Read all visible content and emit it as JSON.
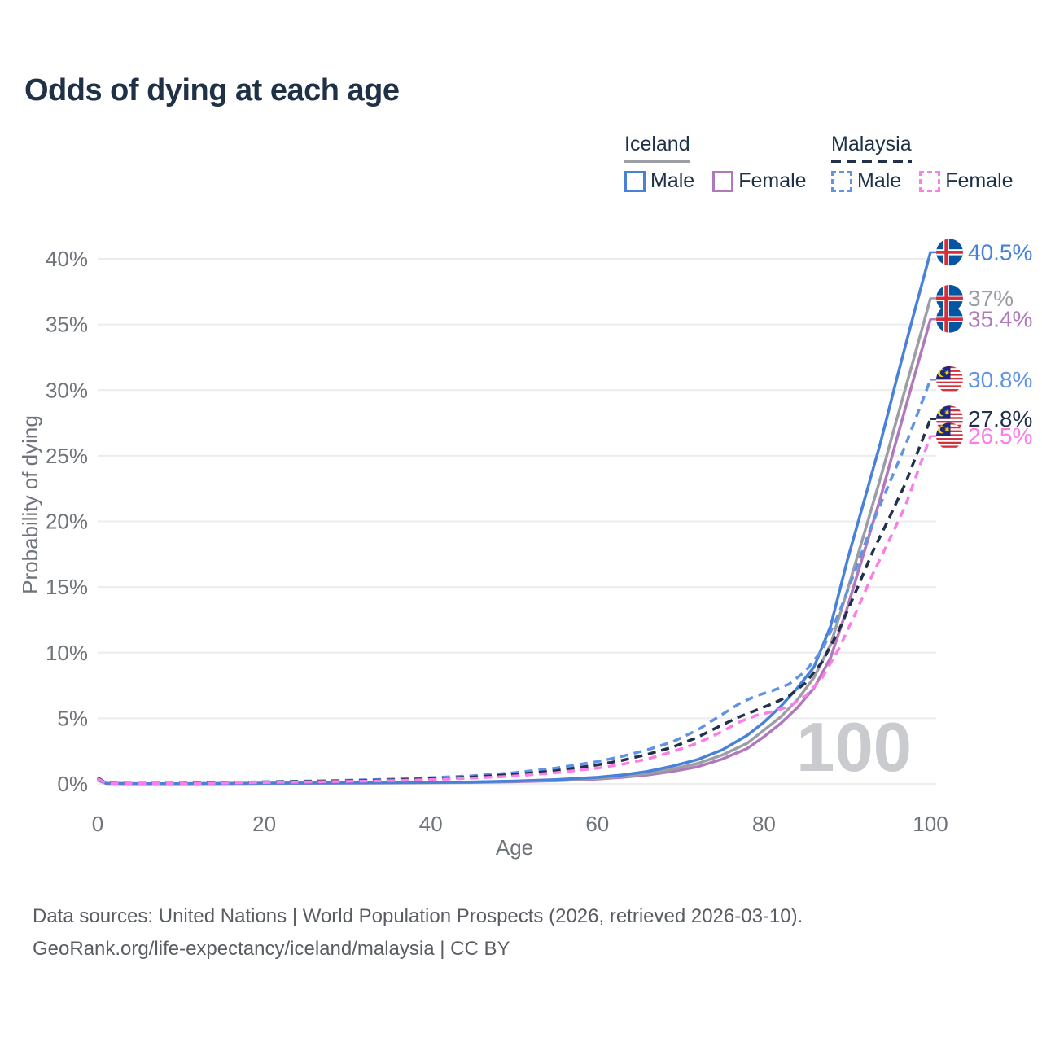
{
  "title": "Odds of dying at each age",
  "watermark_age": "100",
  "legend": {
    "groups": [
      {
        "name": "Iceland",
        "line_style": "solid",
        "line_color": "#9b9ea4",
        "items": [
          {
            "label": "Male",
            "color": "#4781d9",
            "dashed": false
          },
          {
            "label": "Female",
            "color": "#b278bd",
            "dashed": false
          }
        ]
      },
      {
        "name": "Malaysia",
        "line_style": "dashed",
        "line_color": "#22304a",
        "items": [
          {
            "label": "Male",
            "color": "#6093e5",
            "dashed": true
          },
          {
            "label": "Female",
            "color": "#fb7ee6",
            "dashed": true
          }
        ]
      }
    ]
  },
  "footer": {
    "line1": "Data sources: United Nations | World Population Prospects (2026, retrieved 2026-03-10).",
    "line2": "GeoRank.org/life-expectancy/iceland/malaysia | CC BY"
  },
  "chart_data": {
    "type": "line",
    "title": "Odds of dying at each age",
    "xlabel": "Age",
    "ylabel": "Probability of dying",
    "xlim": [
      0,
      100
    ],
    "ylim_percent": [
      0,
      40
    ],
    "xticks": [
      0,
      20,
      40,
      60,
      80,
      100
    ],
    "yticks_percent": [
      0,
      5,
      10,
      15,
      20,
      25,
      30,
      35,
      40
    ],
    "grid": true,
    "legend_position": "top-right",
    "current_age_frame": "100",
    "series": [
      {
        "name": "Iceland Female",
        "country": "Iceland",
        "sex": "female",
        "color": "#b278bd",
        "dash": "solid",
        "end_label": "35.4%",
        "end_value_percent": 35.4,
        "flag": "iceland",
        "flag_icon": "iceland-flag-icon",
        "points": [
          [
            0,
            0.28
          ],
          [
            1,
            0.04
          ],
          [
            5,
            0.015
          ],
          [
            10,
            0.015
          ],
          [
            15,
            0.025
          ],
          [
            20,
            0.04
          ],
          [
            25,
            0.05
          ],
          [
            30,
            0.06
          ],
          [
            35,
            0.07
          ],
          [
            40,
            0.09
          ],
          [
            45,
            0.11
          ],
          [
            50,
            0.16
          ],
          [
            55,
            0.24
          ],
          [
            60,
            0.37
          ],
          [
            63,
            0.5
          ],
          [
            66,
            0.68
          ],
          [
            69,
            0.95
          ],
          [
            72,
            1.3
          ],
          [
            75,
            1.9
          ],
          [
            78,
            2.7
          ],
          [
            80,
            3.6
          ],
          [
            82,
            4.6
          ],
          [
            84,
            5.8
          ],
          [
            86,
            7.3
          ],
          [
            88,
            9.6
          ],
          [
            90,
            13.4
          ],
          [
            92,
            17.6
          ],
          [
            94,
            21.8
          ],
          [
            96,
            26.4
          ],
          [
            98,
            30.9
          ],
          [
            100,
            35.4
          ]
        ]
      },
      {
        "name": "Iceland Both sexes",
        "country": "Iceland",
        "sex": "both",
        "color": "#9b9ea4",
        "dash": "solid",
        "end_label": "37%",
        "end_value_percent": 37,
        "flag": "iceland",
        "flag_icon": "iceland-flag-icon",
        "points": [
          [
            0,
            0.3
          ],
          [
            1,
            0.04
          ],
          [
            5,
            0.02
          ],
          [
            10,
            0.02
          ],
          [
            15,
            0.03
          ],
          [
            20,
            0.05
          ],
          [
            25,
            0.06
          ],
          [
            30,
            0.07
          ],
          [
            35,
            0.08
          ],
          [
            40,
            0.1
          ],
          [
            45,
            0.13
          ],
          [
            50,
            0.19
          ],
          [
            55,
            0.28
          ],
          [
            60,
            0.43
          ],
          [
            63,
            0.58
          ],
          [
            66,
            0.8
          ],
          [
            69,
            1.13
          ],
          [
            72,
            1.55
          ],
          [
            75,
            2.2
          ],
          [
            78,
            3.1
          ],
          [
            80,
            4.1
          ],
          [
            82,
            5.1
          ],
          [
            84,
            6.4
          ],
          [
            86,
            8.1
          ],
          [
            88,
            10.6
          ],
          [
            90,
            14.7
          ],
          [
            92,
            19
          ],
          [
            94,
            23.3
          ],
          [
            96,
            27.9
          ],
          [
            98,
            32.4
          ],
          [
            100,
            37
          ]
        ]
      },
      {
        "name": "Iceland Male",
        "country": "Iceland",
        "sex": "male",
        "color": "#4781d9",
        "dash": "solid",
        "end_label": "40.5%",
        "end_value_percent": 40.5,
        "flag": "iceland",
        "flag_icon": "iceland-flag-icon",
        "points": [
          [
            0,
            0.35
          ],
          [
            1,
            0.05
          ],
          [
            5,
            0.02
          ],
          [
            10,
            0.02
          ],
          [
            15,
            0.04
          ],
          [
            20,
            0.06
          ],
          [
            25,
            0.07
          ],
          [
            30,
            0.08
          ],
          [
            35,
            0.09
          ],
          [
            40,
            0.11
          ],
          [
            45,
            0.15
          ],
          [
            50,
            0.22
          ],
          [
            55,
            0.33
          ],
          [
            60,
            0.5
          ],
          [
            63,
            0.68
          ],
          [
            66,
            0.95
          ],
          [
            69,
            1.35
          ],
          [
            72,
            1.85
          ],
          [
            75,
            2.6
          ],
          [
            78,
            3.7
          ],
          [
            80,
            4.7
          ],
          [
            82,
            5.9
          ],
          [
            84,
            7.3
          ],
          [
            86,
            8.9
          ],
          [
            88,
            12
          ],
          [
            90,
            17
          ],
          [
            92,
            21.5
          ],
          [
            94,
            26
          ],
          [
            96,
            31
          ],
          [
            98,
            35.8
          ],
          [
            100,
            40.5
          ]
        ]
      },
      {
        "name": "Malaysia Male",
        "country": "Malaysia",
        "sex": "male",
        "color": "#6093e5",
        "dash": "dashed",
        "end_label": "30.8%",
        "end_value_percent": 30.8,
        "flag": "malaysia",
        "flag_icon": "malaysia-flag-icon",
        "points": [
          [
            0,
            0.5
          ],
          [
            1,
            0.07
          ],
          [
            5,
            0.05
          ],
          [
            10,
            0.06
          ],
          [
            15,
            0.1
          ],
          [
            20,
            0.17
          ],
          [
            25,
            0.22
          ],
          [
            30,
            0.28
          ],
          [
            35,
            0.36
          ],
          [
            40,
            0.47
          ],
          [
            45,
            0.62
          ],
          [
            50,
            0.85
          ],
          [
            55,
            1.2
          ],
          [
            60,
            1.7
          ],
          [
            63,
            2.1
          ],
          [
            66,
            2.6
          ],
          [
            69,
            3.2
          ],
          [
            72,
            4.1
          ],
          [
            75,
            5.3
          ],
          [
            77,
            6.1
          ],
          [
            79,
            6.7
          ],
          [
            81,
            7.1
          ],
          [
            83,
            7.6
          ],
          [
            85,
            8.6
          ],
          [
            87,
            10.2
          ],
          [
            89,
            13
          ],
          [
            91,
            16.3
          ],
          [
            93,
            19.8
          ],
          [
            95,
            22.8
          ],
          [
            97,
            25.8
          ],
          [
            100,
            30.8
          ]
        ]
      },
      {
        "name": "Malaysia Both sexes",
        "country": "Malaysia",
        "sex": "both",
        "color": "#22304a",
        "dash": "dashed",
        "end_label": "27.8%",
        "end_value_percent": 27.8,
        "flag": "malaysia",
        "flag_icon": "malaysia-flag-icon",
        "points": [
          [
            0,
            0.45
          ],
          [
            1,
            0.06
          ],
          [
            5,
            0.04
          ],
          [
            10,
            0.05
          ],
          [
            15,
            0.08
          ],
          [
            20,
            0.14
          ],
          [
            25,
            0.18
          ],
          [
            30,
            0.23
          ],
          [
            35,
            0.3
          ],
          [
            40,
            0.39
          ],
          [
            45,
            0.52
          ],
          [
            50,
            0.72
          ],
          [
            55,
            1
          ],
          [
            60,
            1.45
          ],
          [
            63,
            1.8
          ],
          [
            66,
            2.25
          ],
          [
            69,
            2.8
          ],
          [
            72,
            3.55
          ],
          [
            75,
            4.5
          ],
          [
            77,
            5.1
          ],
          [
            79,
            5.6
          ],
          [
            81,
            6.1
          ],
          [
            83,
            6.7
          ],
          [
            85,
            7.7
          ],
          [
            87,
            9.3
          ],
          [
            89,
            11.7
          ],
          [
            91,
            14.6
          ],
          [
            93,
            17.6
          ],
          [
            95,
            20.2
          ],
          [
            97,
            22.9
          ],
          [
            100,
            27.8
          ]
        ]
      },
      {
        "name": "Malaysia Female",
        "country": "Malaysia",
        "sex": "female",
        "color": "#fb7ee6",
        "dash": "dashed",
        "end_label": "26.5%",
        "end_value_percent": 26.5,
        "flag": "malaysia",
        "flag_icon": "malaysia-flag-icon",
        "points": [
          [
            0,
            0.4
          ],
          [
            1,
            0.05
          ],
          [
            5,
            0.03
          ],
          [
            10,
            0.04
          ],
          [
            15,
            0.06
          ],
          [
            20,
            0.11
          ],
          [
            25,
            0.15
          ],
          [
            30,
            0.19
          ],
          [
            35,
            0.25
          ],
          [
            40,
            0.33
          ],
          [
            45,
            0.44
          ],
          [
            50,
            0.6
          ],
          [
            55,
            0.85
          ],
          [
            60,
            1.2
          ],
          [
            63,
            1.5
          ],
          [
            66,
            1.9
          ],
          [
            69,
            2.45
          ],
          [
            72,
            3.1
          ],
          [
            75,
            4
          ],
          [
            77,
            4.7
          ],
          [
            79,
            5.2
          ],
          [
            81,
            5.5
          ],
          [
            83,
            5.9
          ],
          [
            85,
            6.7
          ],
          [
            87,
            8.1
          ],
          [
            89,
            10.3
          ],
          [
            91,
            13
          ],
          [
            93,
            15.9
          ],
          [
            95,
            18.5
          ],
          [
            97,
            21.2
          ],
          [
            100,
            26.5
          ]
        ]
      }
    ]
  },
  "colors": {
    "title_text": "#1e3147",
    "axis_text": "#6f737a",
    "grid_line": "#ececee",
    "watermark": "#c9cbce",
    "footer_text": "#595d63",
    "iceland_flag_blue": "#0456a3",
    "iceland_flag_red": "#d62d3b",
    "malaysia_flag_red": "#d5303e",
    "malaysia_flag_blue": "#1b2a80",
    "malaysia_flag_yellow": "#ffd100"
  }
}
